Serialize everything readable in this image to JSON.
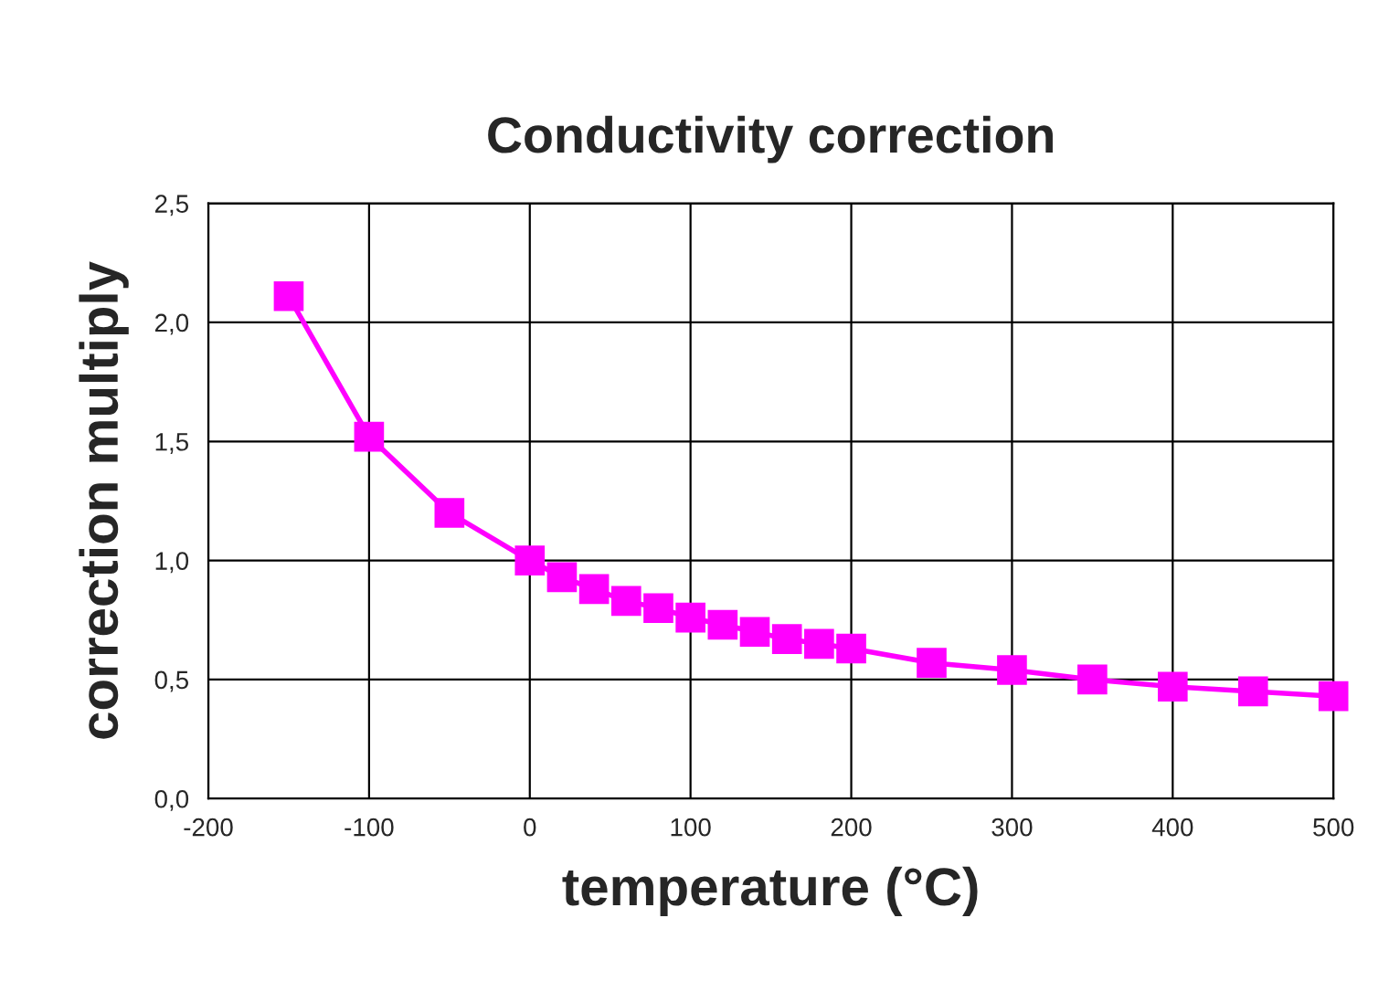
{
  "chart_data": {
    "type": "line",
    "title": "Conductivity correction",
    "xlabel": "temperature (°C)",
    "ylabel": "correction multiply",
    "x": [
      -150,
      -100,
      -50,
      0,
      20,
      40,
      60,
      80,
      100,
      120,
      140,
      160,
      180,
      200,
      250,
      300,
      350,
      400,
      450,
      500
    ],
    "series": [
      {
        "color": "#ff00ff",
        "values": [
          2.11,
          1.52,
          1.2,
          1.0,
          0.93,
          0.88,
          0.83,
          0.8,
          0.76,
          0.73,
          0.7,
          0.67,
          0.65,
          0.63,
          0.57,
          0.54,
          0.5,
          0.47,
          0.45,
          0.43
        ]
      }
    ],
    "xlim": [
      -200,
      500
    ],
    "xticks": [
      -200,
      -100,
      0,
      100,
      200,
      300,
      400,
      500
    ],
    "ylim": [
      0,
      2.5
    ],
    "yticks": [
      {
        "value": 0,
        "label": "0,0"
      },
      {
        "value": 0.5,
        "label": "0,5"
      },
      {
        "value": 1.0,
        "label": "1,0"
      },
      {
        "value": 1.5,
        "label": "1,5"
      },
      {
        "value": 2.0,
        "label": "2,0"
      },
      {
        "value": 2.5,
        "label": "2,5"
      }
    ],
    "grid": true,
    "marker": "square",
    "line_style": "solid"
  }
}
